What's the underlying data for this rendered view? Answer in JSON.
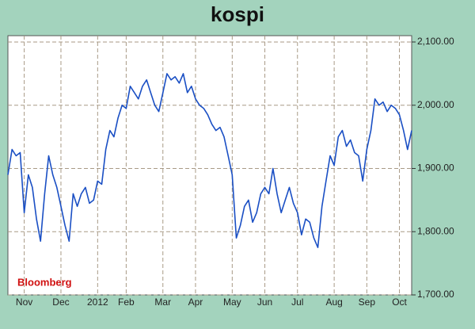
{
  "chart_data": {
    "type": "line",
    "title": "kospi",
    "annotation": "Bloomberg",
    "categories": [
      null,
      null,
      null,
      null,
      "Nov",
      null,
      null,
      null,
      null,
      null,
      null,
      null,
      null,
      "Dec",
      null,
      null,
      null,
      null,
      null,
      null,
      null,
      null,
      "2012",
      null,
      null,
      null,
      null,
      null,
      null,
      "Feb",
      null,
      null,
      null,
      null,
      null,
      null,
      null,
      null,
      "Mar",
      null,
      null,
      null,
      null,
      null,
      null,
      null,
      "Apr",
      null,
      null,
      null,
      null,
      null,
      null,
      null,
      null,
      "May",
      null,
      null,
      null,
      null,
      null,
      null,
      null,
      "Jun",
      null,
      null,
      null,
      null,
      null,
      null,
      null,
      "Jul",
      null,
      null,
      null,
      null,
      null,
      null,
      null,
      null,
      "Aug",
      null,
      null,
      null,
      null,
      null,
      null,
      null,
      "Sep",
      null,
      null,
      null,
      null,
      null,
      null,
      null,
      "Oct",
      null,
      null,
      null
    ],
    "series": [
      {
        "name": "kospi",
        "color": "#1a4fc4",
        "values": [
          1890,
          1930,
          1920,
          1925,
          1830,
          1890,
          1870,
          1820,
          1785,
          1860,
          1920,
          1890,
          1870,
          1840,
          1810,
          1785,
          1860,
          1840,
          1860,
          1870,
          1845,
          1850,
          1880,
          1875,
          1930,
          1960,
          1950,
          1980,
          2000,
          1995,
          2030,
          2020,
          2010,
          2030,
          2040,
          2020,
          2000,
          1990,
          2020,
          2050,
          2040,
          2045,
          2035,
          2050,
          2020,
          2030,
          2010,
          2000,
          1995,
          1985,
          1970,
          1960,
          1965,
          1950,
          1920,
          1890,
          1790,
          1810,
          1840,
          1850,
          1815,
          1830,
          1860,
          1870,
          1860,
          1900,
          1860,
          1830,
          1850,
          1870,
          1845,
          1830,
          1795,
          1820,
          1815,
          1790,
          1775,
          1840,
          1880,
          1920,
          1905,
          1950,
          1960,
          1935,
          1945,
          1925,
          1920,
          1880,
          1930,
          1960,
          2010,
          2000,
          2005,
          1990,
          2000,
          1995,
          1985,
          1960,
          1930,
          1960
        ]
      }
    ],
    "ylim": [
      1700,
      2110
    ],
    "yticks": [
      {
        "value": 1700,
        "label": "1,700.00"
      },
      {
        "value": 1800,
        "label": "1,800.00"
      },
      {
        "value": 1900,
        "label": "1,900.00"
      },
      {
        "value": 2000,
        "label": "2,000.00"
      },
      {
        "value": 2100,
        "label": "2,100.00"
      }
    ],
    "grid": true
  }
}
